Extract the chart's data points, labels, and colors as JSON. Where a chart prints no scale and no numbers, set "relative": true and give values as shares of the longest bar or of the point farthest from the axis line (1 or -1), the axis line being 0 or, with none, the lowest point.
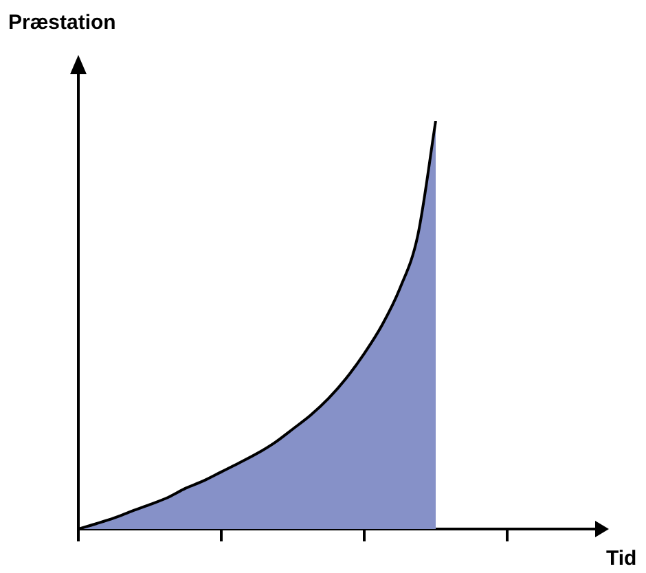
{
  "chart_data": {
    "type": "area",
    "relative": true,
    "ylabel": "Præstation",
    "xlabel": "Tid",
    "categories": [
      null,
      null,
      null,
      null,
      null,
      null,
      null,
      null,
      null,
      null,
      null,
      null,
      null,
      null,
      null,
      null,
      null,
      null,
      null,
      null,
      null,
      null,
      null,
      null,
      null,
      null,
      null,
      null,
      null,
      null
    ],
    "series": [
      {
        "color": "#8691c8",
        "values": [
          0,
          0.013,
          0.027,
          0.044,
          0.06,
          0.077,
          0.1,
          0.118,
          0.14,
          0.162,
          0.185,
          0.212,
          0.245,
          0.279,
          0.32,
          0.37,
          0.43,
          0.5,
          0.59,
          0.72,
          1,
          null,
          null,
          null,
          null,
          null,
          null,
          null,
          null,
          null
        ]
      }
    ],
    "grid": false,
    "legend": false
  }
}
